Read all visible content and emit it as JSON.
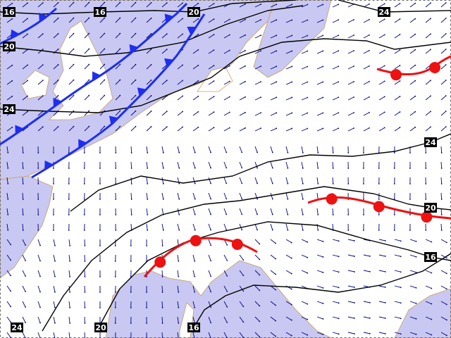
{
  "contour_labels": [
    "16",
    "16",
    "20",
    "24",
    "20",
    "24",
    "24",
    "20",
    "16",
    "24",
    "20",
    "16"
  ]
}
